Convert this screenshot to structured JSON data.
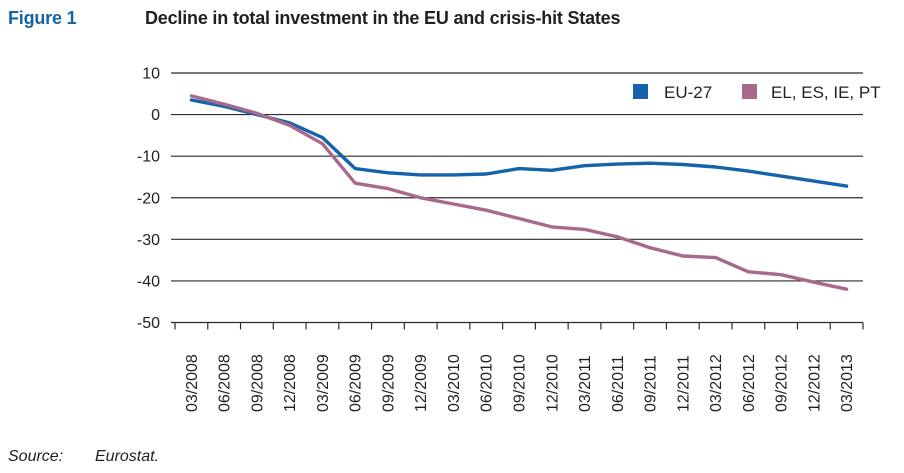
{
  "figure": {
    "label": "Figure 1",
    "title": "Decline in total investment in the EU and crisis-hit States"
  },
  "source": {
    "label": "Source:",
    "value": "Eurostat."
  },
  "colors": {
    "figure_label_blue": "#1464a8",
    "eu27_line": "#1563ab",
    "crisis_line": "#a9698a",
    "text": "#231f20",
    "grid": "#2b2b2b"
  },
  "chart_data": {
    "type": "line",
    "title": "Decline in total investment in the EU and crisis-hit States",
    "xlabel": "",
    "ylabel": "",
    "ylim": [
      -50,
      10
    ],
    "yticks": [
      10,
      0,
      -10,
      -20,
      -30,
      -40,
      -50
    ],
    "grid": true,
    "legend_position": "top-right",
    "x": [
      "03/2008",
      "06/2008",
      "09/2008",
      "12/2008",
      "03/2009",
      "06/2009",
      "09/2009",
      "12/2009",
      "03/2010",
      "06/2010",
      "09/2010",
      "12/2010",
      "03/2011",
      "06/2011",
      "09/2011",
      "12/2011",
      "03/2012",
      "06/2012",
      "09/2012",
      "12/2012",
      "03/2013"
    ],
    "series": [
      {
        "name": "EU-27",
        "color": "#1563ab",
        "values": [
          3.5,
          2.0,
          0.0,
          -2.0,
          -5.5,
          -13.0,
          -14.0,
          -14.5,
          -14.5,
          -14.3,
          -13.0,
          -13.4,
          -12.3,
          -11.9,
          -11.7,
          -12.0,
          -12.6,
          -13.6,
          -14.8,
          -16.0,
          -17.2
        ]
      },
      {
        "name": "EL, ES, IE, PT",
        "color": "#a9698a",
        "values": [
          4.5,
          2.5,
          0.3,
          -2.6,
          -7.0,
          -16.5,
          -17.8,
          -20.0,
          -21.5,
          -23.0,
          -25.0,
          -27.0,
          -27.6,
          -29.4,
          -32.0,
          -34.0,
          -34.4,
          -37.8,
          -38.5,
          -40.3,
          -42.0
        ]
      }
    ]
  }
}
